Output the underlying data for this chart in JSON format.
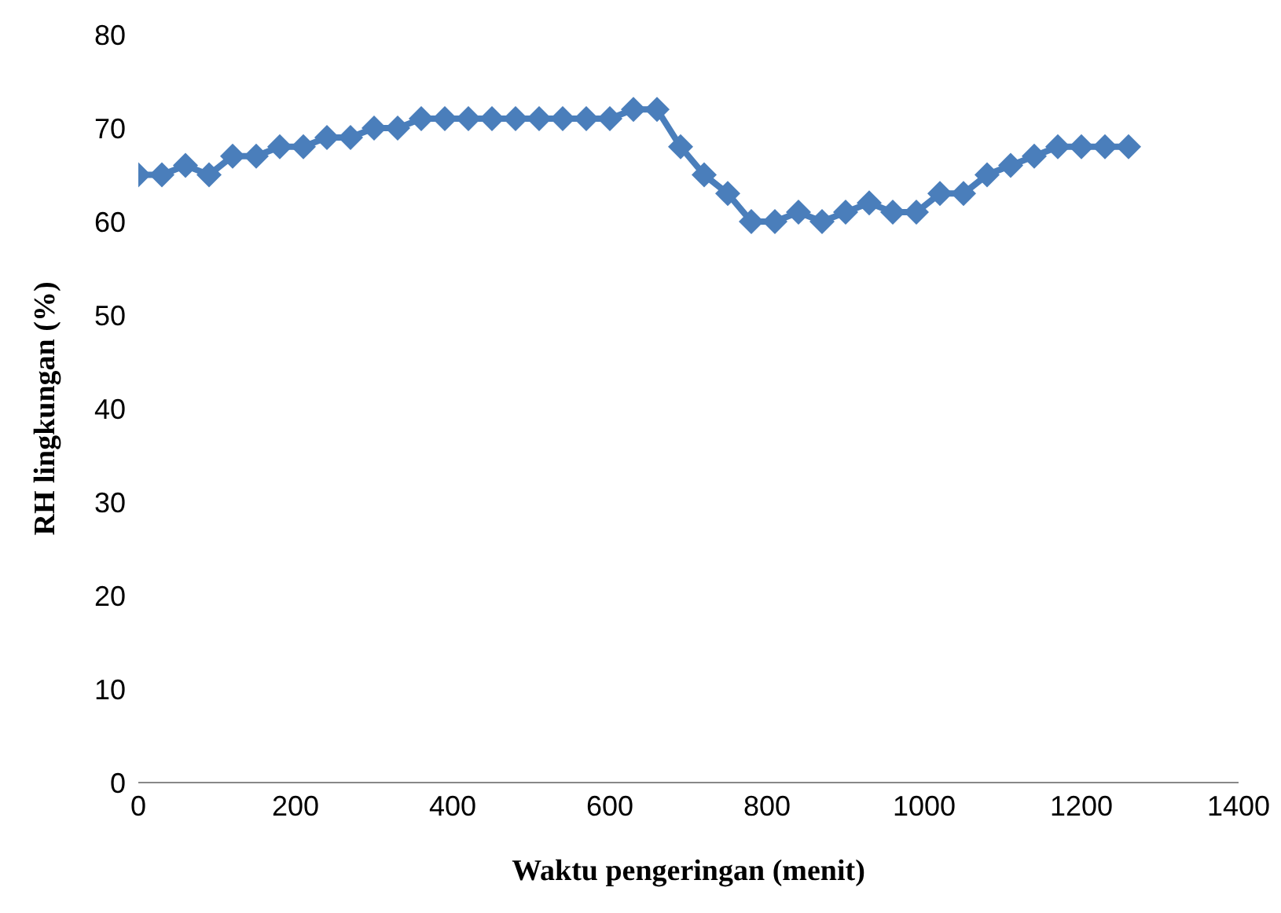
{
  "chart_data": {
    "type": "line",
    "xlabel": "Waktu pengeringan (menit)",
    "ylabel": "RH lingkungan (%)",
    "x": [
      0,
      30,
      60,
      90,
      120,
      150,
      180,
      210,
      240,
      270,
      300,
      330,
      360,
      390,
      420,
      450,
      480,
      510,
      540,
      570,
      600,
      630,
      660,
      690,
      720,
      750,
      780,
      810,
      840,
      870,
      900,
      930,
      960,
      990,
      1020,
      1050,
      1080,
      1110,
      1140,
      1170,
      1200,
      1230,
      1260
    ],
    "series": [
      {
        "color": "#4a7ebb",
        "values": [
          65,
          65,
          66,
          65,
          67,
          67,
          68,
          68,
          69,
          69,
          70,
          70,
          71,
          71,
          71,
          71,
          71,
          71,
          71,
          71,
          71,
          72,
          72,
          68,
          65,
          63,
          60,
          60,
          61,
          60,
          61,
          62,
          61,
          61,
          63,
          63,
          65,
          66,
          67,
          68,
          68,
          68,
          68
        ]
      }
    ],
    "xlim": [
      0,
      1400
    ],
    "xticks": [
      0,
      200,
      400,
      600,
      800,
      1000,
      1200,
      1400
    ],
    "ylim": [
      0,
      80
    ],
    "yticks": [
      0,
      10,
      20,
      30,
      40,
      50,
      60,
      70,
      80
    ],
    "grid": false,
    "legend": false,
    "marker": "diamond",
    "line_style": "solid"
  }
}
